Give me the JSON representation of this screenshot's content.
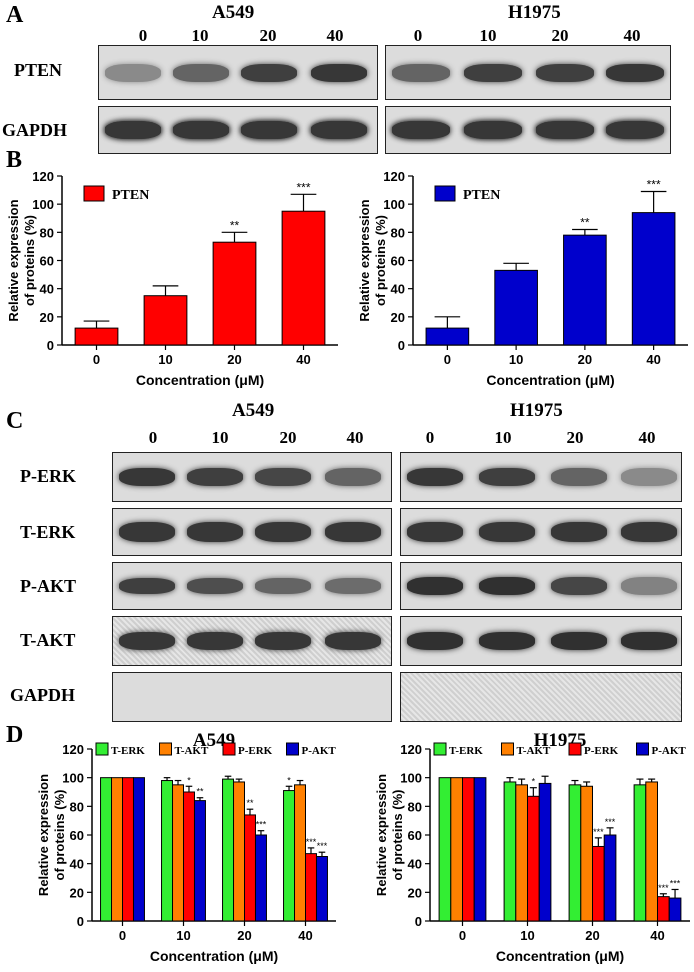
{
  "panels": {
    "A": {
      "letter": "A",
      "cells": [
        "A549",
        "H1975"
      ],
      "lanes": [
        "0",
        "10",
        "20",
        "40"
      ],
      "rows": [
        "PTEN",
        "GAPDH"
      ]
    },
    "B": {
      "letter": "B"
    },
    "C": {
      "letter": "C",
      "cells": [
        "A549",
        "H1975"
      ],
      "lanes": [
        "0",
        "10",
        "20",
        "40"
      ],
      "rows": [
        "P-ERK",
        "T-ERK",
        "P-AKT",
        "T-AKT",
        "GAPDH"
      ]
    },
    "D": {
      "letter": "D"
    }
  },
  "colors": {
    "red": "#ff0000",
    "blue": "#0000cc",
    "green": "#33ee33",
    "orange": "#ff8000"
  },
  "blot_intensity": {
    "A549_PTEN": [
      0.35,
      0.6,
      0.85,
      0.9
    ],
    "H1975_PTEN": [
      0.6,
      0.85,
      0.85,
      0.9
    ],
    "GAPDH_A": [
      0.9,
      0.9,
      0.9,
      0.85
    ],
    "A549_P-ERK": [
      0.9,
      0.85,
      0.8,
      0.6
    ],
    "H1975_P-ERK": [
      0.9,
      0.85,
      0.6,
      0.35
    ],
    "A549_P-AKT": [
      0.85,
      0.75,
      0.6,
      0.55
    ],
    "H1975_P-AKT": [
      0.95,
      0.95,
      0.8,
      0.4
    ]
  },
  "chart_data": [
    {
      "id": "B-left",
      "type": "bar",
      "categories": [
        "0",
        "10",
        "20",
        "40"
      ],
      "series": [
        {
          "name": "PTEN",
          "values": [
            12,
            35,
            73,
            95
          ],
          "errors": [
            5,
            7,
            7,
            12
          ],
          "color": "#ff0000"
        }
      ],
      "sig": [
        "",
        "",
        "**",
        "***"
      ],
      "xlabel": "Concentration (μM)",
      "ylabel": [
        "Relative expression",
        "of proteins (%)"
      ],
      "ylim": [
        0,
        120
      ],
      "yticks": [
        0,
        20,
        40,
        60,
        80,
        100,
        120
      ],
      "legend": "top-left"
    },
    {
      "id": "B-right",
      "type": "bar",
      "categories": [
        "0",
        "10",
        "20",
        "40"
      ],
      "series": [
        {
          "name": "PTEN",
          "values": [
            12,
            53,
            78,
            94
          ],
          "errors": [
            8,
            5,
            4,
            15
          ],
          "color": "#0000cc"
        }
      ],
      "sig": [
        "",
        "",
        "**",
        "***"
      ],
      "xlabel": "Concentration (μM)",
      "ylabel": [
        "Relative expression",
        "of proteins (%)"
      ],
      "ylim": [
        0,
        120
      ],
      "yticks": [
        0,
        20,
        40,
        60,
        80,
        100,
        120
      ],
      "legend": "top-left"
    },
    {
      "id": "D-left",
      "type": "bar",
      "title": "A549",
      "categories": [
        "0",
        "10",
        "20",
        "40"
      ],
      "series": [
        {
          "name": "T-ERK",
          "values": [
            100,
            98,
            99,
            91
          ],
          "errors": [
            0,
            2,
            2,
            3
          ],
          "color": "#33ee33",
          "sig": [
            "",
            "",
            "",
            "*"
          ]
        },
        {
          "name": "T-AKT",
          "values": [
            100,
            95,
            97,
            95
          ],
          "errors": [
            0,
            3,
            2,
            3
          ],
          "color": "#ff8000",
          "sig": [
            "",
            "",
            "",
            ""
          ]
        },
        {
          "name": "P-ERK",
          "values": [
            100,
            90,
            74,
            47
          ],
          "errors": [
            0,
            4,
            4,
            4
          ],
          "color": "#ff0000",
          "sig": [
            "",
            "*",
            "**",
            "***"
          ]
        },
        {
          "name": "P-AKT",
          "values": [
            100,
            84,
            60,
            45
          ],
          "errors": [
            0,
            2,
            3,
            3
          ],
          "color": "#0000cc",
          "sig": [
            "",
            "**",
            "***",
            "***"
          ]
        }
      ],
      "xlabel": "Concentration (μM)",
      "ylabel": [
        "Relative expression",
        "of proteins (%)"
      ],
      "ylim": [
        0,
        120
      ],
      "yticks": [
        0,
        20,
        40,
        60,
        80,
        100,
        120
      ],
      "legend": "top"
    },
    {
      "id": "D-right",
      "type": "bar",
      "title": "H1975",
      "categories": [
        "0",
        "10",
        "20",
        "40"
      ],
      "series": [
        {
          "name": "T-ERK",
          "values": [
            100,
            97,
            95,
            95
          ],
          "errors": [
            0,
            3,
            3,
            4
          ],
          "color": "#33ee33",
          "sig": [
            "",
            "",
            "",
            ""
          ]
        },
        {
          "name": "T-AKT",
          "values": [
            100,
            95,
            94,
            97
          ],
          "errors": [
            0,
            4,
            3,
            2
          ],
          "color": "#ff8000",
          "sig": [
            "",
            "",
            "",
            ""
          ]
        },
        {
          "name": "P-ERK",
          "values": [
            100,
            87,
            52,
            17
          ],
          "errors": [
            0,
            6,
            6,
            2
          ],
          "color": "#ff0000",
          "sig": [
            "",
            "*",
            "***",
            "***"
          ]
        },
        {
          "name": "P-AKT",
          "values": [
            100,
            96,
            60,
            16
          ],
          "errors": [
            0,
            5,
            5,
            6
          ],
          "color": "#0000cc",
          "sig": [
            "",
            "",
            "***",
            "***"
          ]
        }
      ],
      "xlabel": "Concentration (μM)",
      "ylabel": [
        "Relative expression",
        "of proteins (%)"
      ],
      "ylim": [
        0,
        120
      ],
      "yticks": [
        0,
        20,
        40,
        60,
        80,
        100,
        120
      ],
      "legend": "top"
    }
  ]
}
